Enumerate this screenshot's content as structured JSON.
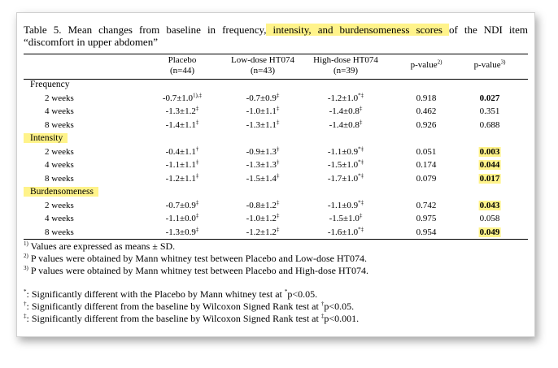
{
  "caption": {
    "line1_pre": "Table 5. Mean changes from baseline in frequency,",
    "line1_hl": " intensity, and burdensomeness scores ",
    "line1_post": "of the NDI item",
    "line2": "“discomfort in upper abdomen”"
  },
  "headers": {
    "placebo": "Placebo",
    "placebo_n": "(n=44)",
    "low": "Low-dose HT074",
    "low_n": "(n=43)",
    "high": "High-dose HT074",
    "high_n": "(n=39)",
    "p2": "p-value",
    "p2_sup": "2)",
    "p3": "p-value",
    "p3_sup": "3)"
  },
  "sections": [
    {
      "name": "Frequency",
      "highlight": false,
      "rows": [
        {
          "week": "2 weeks",
          "placebo": "-0.7±1.0",
          "placebo_sup": "1),‡",
          "low": "-0.7±0.9",
          "low_sup": "‡",
          "high": "-1.2±1.0",
          "high_sup": "*‡",
          "p2": "0.918",
          "p2_hl": false,
          "p2_bold": false,
          "p3": "0.027",
          "p3_hl": false,
          "p3_bold": true
        },
        {
          "week": "4 weeks",
          "placebo": "-1.3±1.2",
          "placebo_sup": "‡",
          "low": "-1.0±1.1",
          "low_sup": "‡",
          "high": "-1.4±0.8",
          "high_sup": "‡",
          "p2": "0.462",
          "p2_hl": false,
          "p2_bold": false,
          "p3": "0.351",
          "p3_hl": false,
          "p3_bold": false
        },
        {
          "week": "8 weeks",
          "placebo": "-1.4±1.1",
          "placebo_sup": "‡",
          "low": "-1.3±1.1",
          "low_sup": "‡",
          "high": "-1.4±0.8",
          "high_sup": "‡",
          "p2": "0.926",
          "p2_hl": false,
          "p2_bold": false,
          "p3": "0.688",
          "p3_hl": false,
          "p3_bold": false
        }
      ]
    },
    {
      "name": "Intensity",
      "highlight": true,
      "rows": [
        {
          "week": "2 weeks",
          "placebo": "-0.4±1.1",
          "placebo_sup": "†",
          "low": "-0.9±1.3",
          "low_sup": "‡",
          "high": "-1.1±0.9",
          "high_sup": "*‡",
          "p2": "0.051",
          "p2_hl": false,
          "p2_bold": false,
          "p3": "0.003",
          "p3_hl": true,
          "p3_bold": true
        },
        {
          "week": "4 weeks",
          "placebo": "-1.1±1.1",
          "placebo_sup": "‡",
          "low": "-1.3±1.3",
          "low_sup": "‡",
          "high": "-1.5±1.0",
          "high_sup": "*‡",
          "p2": "0.174",
          "p2_hl": false,
          "p2_bold": false,
          "p3": "0.044",
          "p3_hl": true,
          "p3_bold": true
        },
        {
          "week": "8 weeks",
          "placebo": "-1.2±1.1",
          "placebo_sup": "‡",
          "low": "-1.5±1.4",
          "low_sup": "‡",
          "high": "-1.7±1.0",
          "high_sup": "*‡",
          "p2": "0.079",
          "p2_hl": false,
          "p2_bold": false,
          "p3": "0.017",
          "p3_hl": true,
          "p3_bold": true
        }
      ]
    },
    {
      "name": "Burdensomeness",
      "highlight": true,
      "rows": [
        {
          "week": "2 weeks",
          "placebo": "-0.7±0.9",
          "placebo_sup": "‡",
          "low": "-0.8±1.2",
          "low_sup": "‡",
          "high": "-1.1±0.9",
          "high_sup": "*‡",
          "p2": "0.742",
          "p2_hl": false,
          "p2_bold": false,
          "p3": "0.043",
          "p3_hl": true,
          "p3_bold": true
        },
        {
          "week": "4 weeks",
          "placebo": "-1.1±0.0",
          "placebo_sup": "‡",
          "low": "-1.0±1.2",
          "low_sup": "‡",
          "high": "-1.5±1.0",
          "high_sup": "‡",
          "p2": "0.975",
          "p2_hl": false,
          "p2_bold": false,
          "p3": "0.058",
          "p3_hl": false,
          "p3_bold": false
        },
        {
          "week": "8 weeks",
          "placebo": "-1.3±0.9",
          "placebo_sup": "‡",
          "low": "-1.2±1.2",
          "low_sup": "‡",
          "high": "-1.6±1.0",
          "high_sup": "*‡",
          "p2": "0.954",
          "p2_hl": false,
          "p2_bold": false,
          "p3": "0.049",
          "p3_hl": true,
          "p3_bold": true
        }
      ]
    }
  ],
  "footnotes": [
    {
      "mark": "1)",
      "text": " Values are expressed as means ± SD."
    },
    {
      "mark": "2)",
      "text": " P values were obtained by Mann whitney test between Placebo and Low-dose HT074."
    },
    {
      "mark": "3)",
      "text": " P values were obtained by Mann whitney test between Placebo and High-dose HT074."
    }
  ],
  "legend": [
    {
      "mark": "*",
      "pre": ": Significantly different with the Placebo by Mann whitney test at ",
      "inline": "*",
      "post": "p<0.05."
    },
    {
      "mark": "†",
      "pre": ": Significantly different from the baseline by Wilcoxon Signed Rank test at ",
      "inline": "†",
      "post": "p<0.05."
    },
    {
      "mark": "‡",
      "pre": ": Significantly different from the baseline by Wilcoxon Signed Rank test at ",
      "inline": "‡",
      "post": "p<0.001."
    }
  ],
  "colors": {
    "highlight": "#fff38a",
    "border": "#000000"
  }
}
